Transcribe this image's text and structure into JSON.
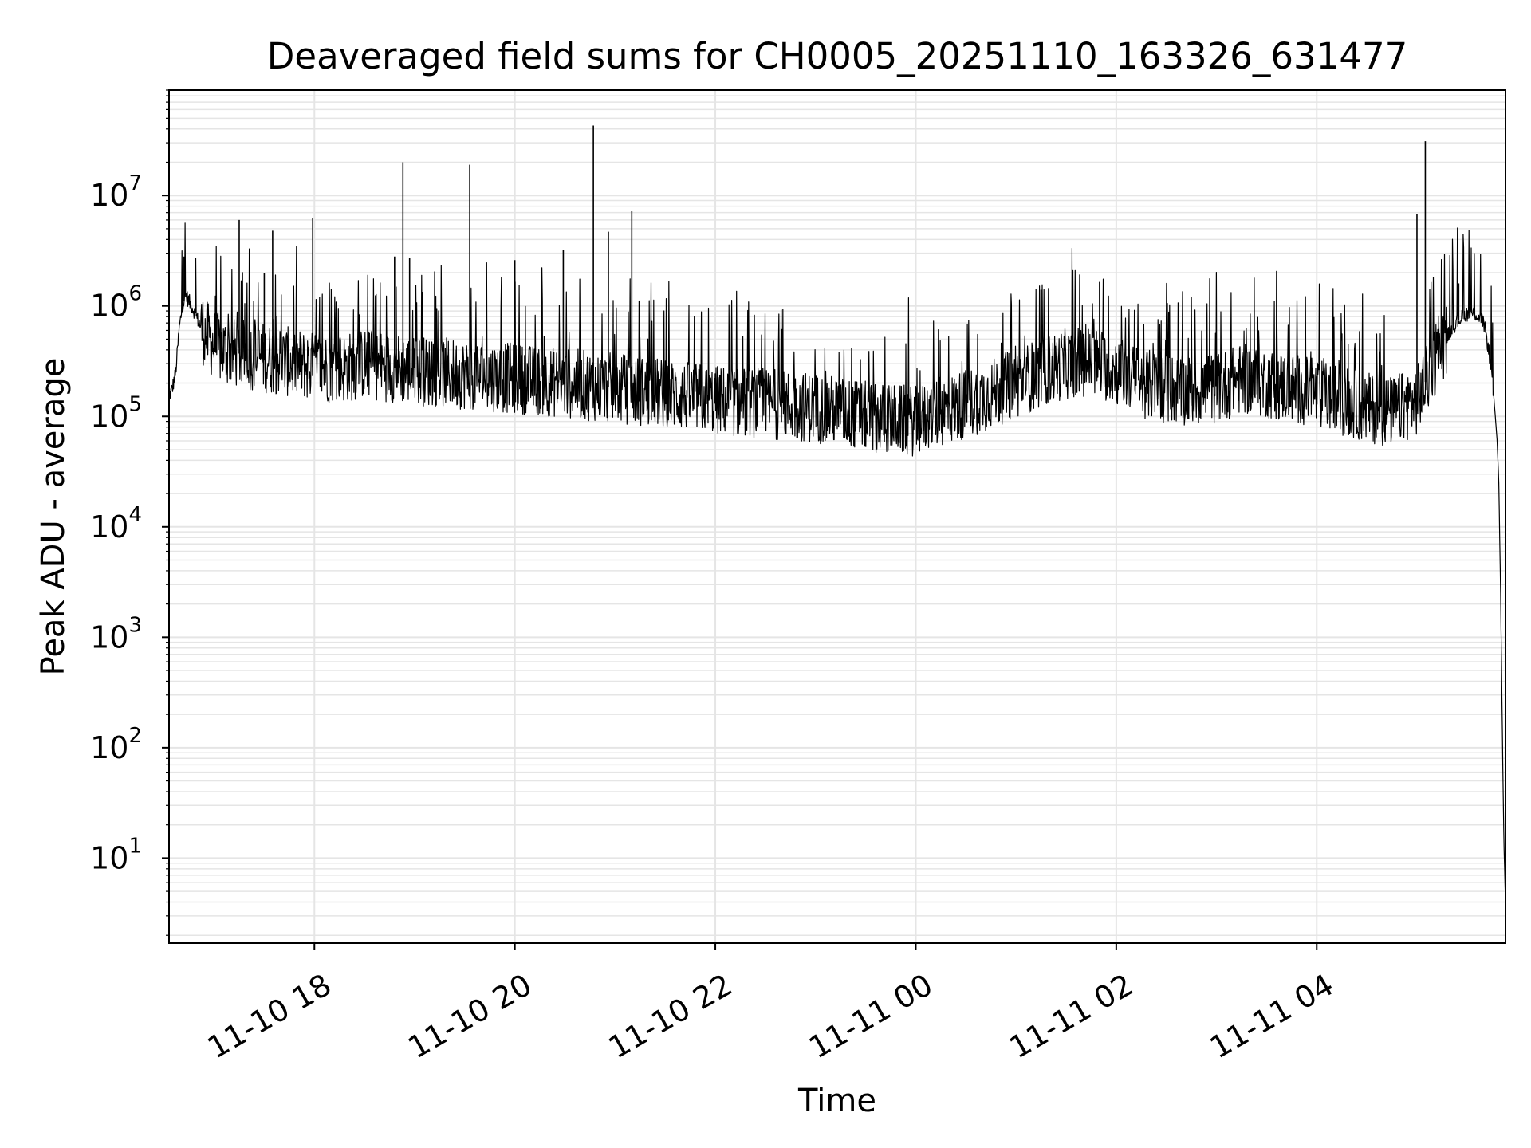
{
  "chart_data": {
    "type": "line",
    "title": "Deaveraged field sums for CH0005_20251110_163326_631477",
    "xlabel": "Time",
    "ylabel": "Peak ADU - average",
    "x_scale": "time",
    "y_scale": "log",
    "xlim": [
      "2025-11-10 16:33",
      "2025-11-11 05:53"
    ],
    "ylim": [
      1.7,
      90000000
    ],
    "x_ticks": [
      {
        "label": "11-10 18",
        "value": "2025-11-10 18:00"
      },
      {
        "label": "11-10 20",
        "value": "2025-11-10 20:00"
      },
      {
        "label": "11-10 22",
        "value": "2025-11-10 22:00"
      },
      {
        "label": "11-11 00",
        "value": "2025-11-11 00:00"
      },
      {
        "label": "11-11 02",
        "value": "2025-11-11 02:00"
      },
      {
        "label": "11-11 04",
        "value": "2025-11-11 04:00"
      }
    ],
    "y_ticks": [
      {
        "base": "10",
        "exp": "1",
        "value": 10
      },
      {
        "base": "10",
        "exp": "2",
        "value": 100
      },
      {
        "base": "10",
        "exp": "3",
        "value": 1000
      },
      {
        "base": "10",
        "exp": "4",
        "value": 10000
      },
      {
        "base": "10",
        "exp": "5",
        "value": 100000
      },
      {
        "base": "10",
        "exp": "6",
        "value": 1000000
      },
      {
        "base": "10",
        "exp": "7",
        "value": 10000000
      }
    ],
    "grid": true,
    "legend": "none",
    "series_color": "#000000",
    "grid_color": "#e5e5e5",
    "series": [
      {
        "x": [
          "2025-11-10 16:33",
          "2025-11-10 16:35",
          "2025-11-10 16:37",
          "2025-11-10 16:39",
          "2025-11-10 16:41",
          "2025-11-10 16:43",
          "2025-11-10 16:45",
          "2025-11-10 16:48",
          "2025-11-10 16:51",
          "2025-11-10 16:55",
          "2025-11-10 17:00",
          "2025-11-10 17:05",
          "2025-11-10 17:10",
          "2025-11-10 17:15",
          "2025-11-10 17:20",
          "2025-11-10 17:30",
          "2025-11-10 17:40",
          "2025-11-10 17:50",
          "2025-11-10 18:00",
          "2025-11-10 18:15",
          "2025-11-10 18:30",
          "2025-11-10 18:45",
          "2025-11-10 19:00",
          "2025-11-10 19:15",
          "2025-11-10 19:30",
          "2025-11-10 19:45",
          "2025-11-10 20:00",
          "2025-11-10 20:15",
          "2025-11-10 20:30",
          "2025-11-10 20:45",
          "2025-11-10 21:00",
          "2025-11-10 21:15",
          "2025-11-10 21:30",
          "2025-11-10 21:45",
          "2025-11-10 22:00",
          "2025-11-10 22:15",
          "2025-11-10 22:30",
          "2025-11-10 22:45",
          "2025-11-10 23:00",
          "2025-11-10 23:15",
          "2025-11-10 23:30",
          "2025-11-10 23:45",
          "2025-11-11 00:00",
          "2025-11-11 00:15",
          "2025-11-11 00:30",
          "2025-11-11 00:45",
          "2025-11-11 01:00",
          "2025-11-11 01:15",
          "2025-11-11 01:30",
          "2025-11-11 01:45",
          "2025-11-11 02:00",
          "2025-11-11 02:15",
          "2025-11-11 02:30",
          "2025-11-11 02:45",
          "2025-11-11 03:00",
          "2025-11-11 03:15",
          "2025-11-11 03:30",
          "2025-11-11 03:45",
          "2025-11-11 04:00",
          "2025-11-11 04:15",
          "2025-11-11 04:30",
          "2025-11-11 04:45",
          "2025-11-11 05:00",
          "2025-11-11 05:10",
          "2025-11-11 05:20",
          "2025-11-11 05:25",
          "2025-11-11 05:30",
          "2025-11-11 05:35",
          "2025-11-11 05:40",
          "2025-11-11 05:43",
          "2025-11-11 05:46",
          "2025-11-11 05:48",
          "2025-11-11 05:49",
          "2025-11-11 05:50",
          "2025-11-11 05:51",
          "2025-11-11 05:52",
          "2025-11-11 05:53"
        ],
        "y": [
          150000,
          180000,
          250000,
          600000,
          1000000,
          1250000,
          1100000,
          900000,
          700000,
          550000,
          450000,
          400000,
          380000,
          370000,
          360000,
          340000,
          320000,
          300000,
          280000,
          270000,
          300000,
          280000,
          260000,
          250000,
          240000,
          230000,
          220000,
          210000,
          200000,
          190000,
          180000,
          170000,
          160000,
          150000,
          140000,
          135000,
          130000,
          125000,
          120000,
          110000,
          100000,
          95000,
          90000,
          110000,
          130000,
          160000,
          200000,
          250000,
          300000,
          320000,
          260000,
          200000,
          180000,
          170000,
          180000,
          220000,
          200000,
          180000,
          160000,
          140000,
          120000,
          110000,
          140000,
          300000,
          600000,
          750000,
          850000,
          850000,
          700000,
          400000,
          150000,
          60000,
          25000,
          3000,
          200,
          15,
          4
        ]
      }
    ],
    "spikes": [
      {
        "x": "2025-11-10 16:42",
        "y": 2800000
      },
      {
        "x": "2025-11-10 17:15",
        "y": 6000000
      },
      {
        "x": "2025-11-10 17:30",
        "y": 2000000
      },
      {
        "x": "2025-11-10 17:35",
        "y": 4800000
      },
      {
        "x": "2025-11-10 17:59",
        "y": 6200000
      },
      {
        "x": "2025-11-10 18:48",
        "y": 2800000
      },
      {
        "x": "2025-11-10 18:53",
        "y": 20000000
      },
      {
        "x": "2025-11-10 18:57",
        "y": 2700000
      },
      {
        "x": "2025-11-10 19:33",
        "y": 19000000
      },
      {
        "x": "2025-11-10 20:00",
        "y": 2600000
      },
      {
        "x": "2025-11-10 20:29",
        "y": 3200000
      },
      {
        "x": "2025-11-10 20:47",
        "y": 43000000
      },
      {
        "x": "2025-11-10 20:56",
        "y": 4700000
      },
      {
        "x": "2025-11-10 21:10",
        "y": 7200000
      },
      {
        "x": "2025-11-11 01:15",
        "y": 1400000
      },
      {
        "x": "2025-11-11 01:50",
        "y": 1650000
      },
      {
        "x": "2025-11-11 05:00",
        "y": 6800000
      },
      {
        "x": "2025-11-11 05:05",
        "y": 31000000
      },
      {
        "x": "2025-11-11 05:25",
        "y": 1600000
      }
    ]
  }
}
